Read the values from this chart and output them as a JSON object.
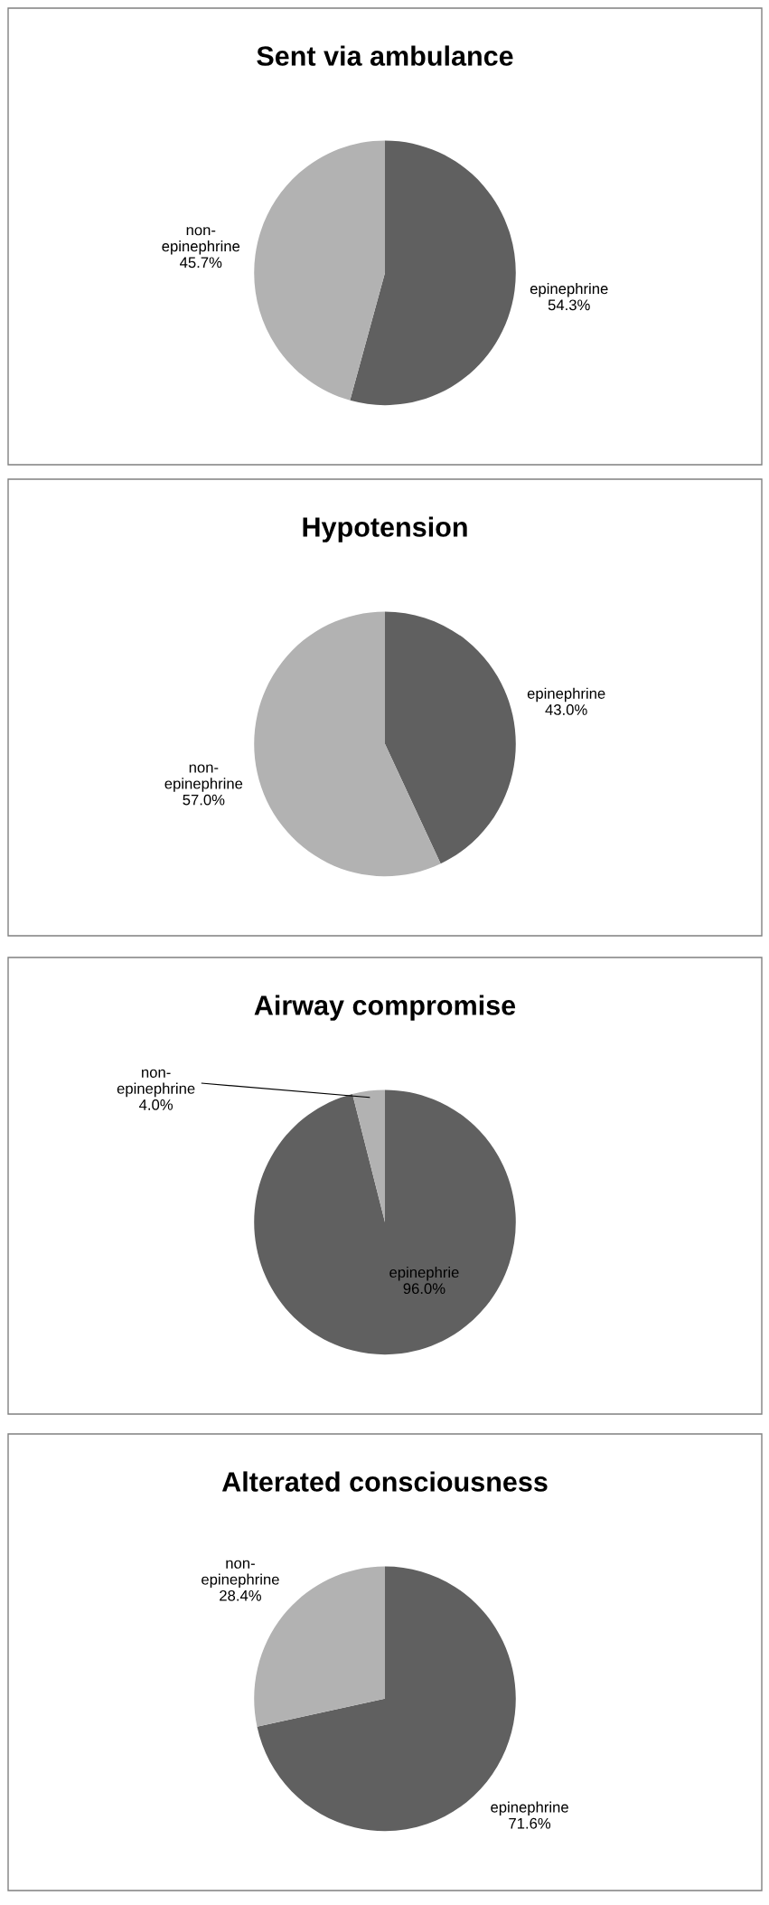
{
  "chart_data": [
    {
      "type": "pie",
      "title": "Sent via ambulance",
      "categories": [
        "epinephrine",
        "non-\nepinephrine"
      ],
      "values": [
        54.3,
        45.7
      ],
      "value_labels": [
        "54.3%",
        "45.7%"
      ],
      "colors": [
        "#606060",
        "#b2b2b2"
      ],
      "legend": false
    },
    {
      "type": "pie",
      "title": "Hypotension",
      "categories": [
        "epinephrine",
        "non-\nepinephrine"
      ],
      "values": [
        43.0,
        57.0
      ],
      "value_labels": [
        "43.0%",
        "57.0%"
      ],
      "colors": [
        "#606060",
        "#b2b2b2"
      ],
      "legend": false
    },
    {
      "type": "pie",
      "title": "Airway compromise",
      "categories": [
        "epinephrie",
        "non-\nepinephrine"
      ],
      "values": [
        96.0,
        4.0
      ],
      "value_labels": [
        "96.0%",
        "4.0%"
      ],
      "colors": [
        "#606060",
        "#b2b2b2"
      ],
      "legend": false
    },
    {
      "type": "pie",
      "title": "Alterated consciousness",
      "categories": [
        "epinephrine",
        "non-\nepinephrine"
      ],
      "values": [
        71.6,
        28.4
      ],
      "value_labels": [
        "71.6%",
        "28.4%"
      ],
      "colors": [
        "#606060",
        "#b2b2b2"
      ],
      "legend": false
    }
  ]
}
